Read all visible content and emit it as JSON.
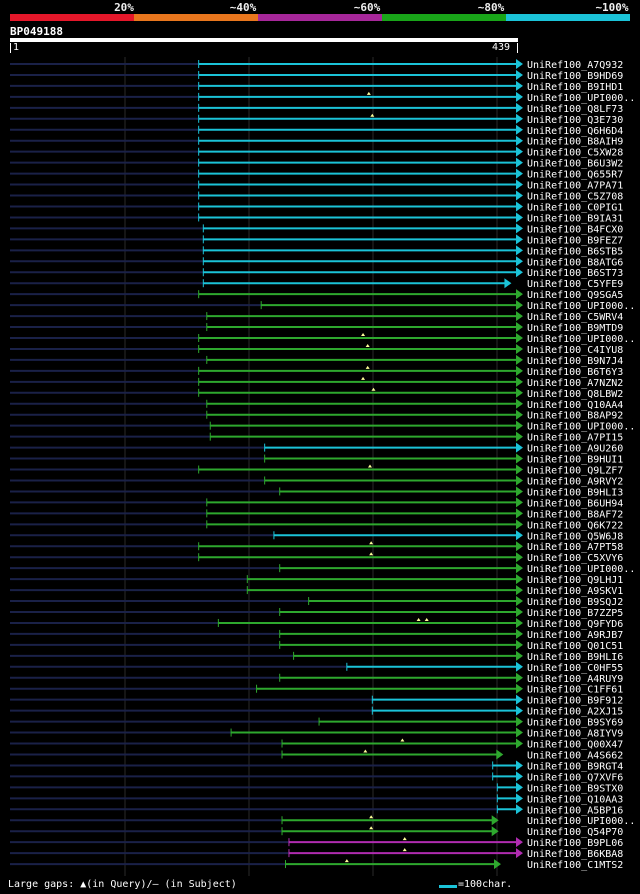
{
  "scale": {
    "labels": [
      "20%",
      "~40%",
      "~60%",
      "~80%",
      "~100%"
    ],
    "colors": [
      "#e5172a",
      "#e8761d",
      "#a7279a",
      "#19a519",
      "#1bc3d8"
    ]
  },
  "query": {
    "name": "BP049188",
    "start": "1",
    "end": "439",
    "length": 439
  },
  "colors": {
    "cyan": "#1bc3d8",
    "green": "#2ea82e",
    "magenta": "#b02cb0",
    "dim": "#1a2148",
    "gap": "#ffff99"
  },
  "footer": {
    "gaps_text": "Large gaps: ▲(in Query)/— (in Subject)",
    "legend_text": "=100char."
  },
  "chart_data": {
    "type": "alignment",
    "query_length": 439,
    "hits": [
      {
        "name": "UniRef100_A7Q932",
        "start": 164,
        "end": 439,
        "color": "cyan",
        "gaps": []
      },
      {
        "name": "UniRef100_B9HD69",
        "start": 164,
        "end": 439,
        "color": "cyan",
        "gaps": []
      },
      {
        "name": "UniRef100_B9IHD1",
        "start": 164,
        "end": 439,
        "color": "cyan",
        "gaps": []
      },
      {
        "name": "UniRef100_UPI000..",
        "start": 164,
        "end": 439,
        "color": "cyan",
        "gaps": [
          311
        ]
      },
      {
        "name": "UniRef100_Q8LF73",
        "start": 164,
        "end": 439,
        "color": "cyan",
        "gaps": []
      },
      {
        "name": "UniRef100_Q3E730",
        "start": 164,
        "end": 439,
        "color": "cyan",
        "gaps": [
          314
        ]
      },
      {
        "name": "UniRef100_Q6H6D4",
        "start": 164,
        "end": 439,
        "color": "cyan",
        "gaps": []
      },
      {
        "name": "UniRef100_B8AIH9",
        "start": 164,
        "end": 439,
        "color": "cyan",
        "gaps": []
      },
      {
        "name": "UniRef100_C5XW28",
        "start": 164,
        "end": 439,
        "color": "cyan",
        "gaps": []
      },
      {
        "name": "UniRef100_B6U3W2",
        "start": 164,
        "end": 439,
        "color": "cyan",
        "gaps": []
      },
      {
        "name": "UniRef100_Q655R7",
        "start": 164,
        "end": 439,
        "color": "cyan",
        "gaps": []
      },
      {
        "name": "UniRef100_A7PA71",
        "start": 164,
        "end": 439,
        "color": "cyan",
        "gaps": []
      },
      {
        "name": "UniRef100_C5Z708",
        "start": 164,
        "end": 439,
        "color": "cyan",
        "gaps": []
      },
      {
        "name": "UniRef100_C0PIG1",
        "start": 164,
        "end": 439,
        "color": "cyan",
        "gaps": []
      },
      {
        "name": "UniRef100_B9IA31",
        "start": 164,
        "end": 439,
        "color": "cyan",
        "gaps": []
      },
      {
        "name": "UniRef100_B4FCX0",
        "start": 168,
        "end": 439,
        "color": "cyan",
        "gaps": []
      },
      {
        "name": "UniRef100_B9FEZ7",
        "start": 168,
        "end": 439,
        "color": "cyan",
        "gaps": []
      },
      {
        "name": "UniRef100_B6STB5",
        "start": 168,
        "end": 439,
        "color": "cyan",
        "gaps": []
      },
      {
        "name": "UniRef100_B8ATG6",
        "start": 168,
        "end": 439,
        "color": "cyan",
        "gaps": []
      },
      {
        "name": "UniRef100_B6ST73",
        "start": 168,
        "end": 439,
        "color": "cyan",
        "gaps": []
      },
      {
        "name": "UniRef100_C5YFE9",
        "start": 168,
        "end": 429,
        "color": "cyan",
        "gaps": []
      },
      {
        "name": "UniRef100_Q9SGA5",
        "start": 164,
        "end": 439,
        "color": "green",
        "gaps": []
      },
      {
        "name": "UniRef100_UPI000..",
        "start": 218,
        "end": 439,
        "color": "green",
        "gaps": []
      },
      {
        "name": "UniRef100_C5WRV4",
        "start": 171,
        "end": 439,
        "color": "green",
        "gaps": []
      },
      {
        "name": "UniRef100_B9MTD9",
        "start": 171,
        "end": 439,
        "color": "green",
        "gaps": []
      },
      {
        "name": "UniRef100_UPI000..",
        "start": 164,
        "end": 439,
        "color": "green",
        "gaps": [
          306
        ]
      },
      {
        "name": "UniRef100_C4IYU8",
        "start": 164,
        "end": 439,
        "color": "green",
        "gaps": [
          310
        ]
      },
      {
        "name": "UniRef100_B9N7J4",
        "start": 171,
        "end": 439,
        "color": "green",
        "gaps": []
      },
      {
        "name": "UniRef100_B6T6Y3",
        "start": 164,
        "end": 439,
        "color": "green",
        "gaps": [
          310
        ]
      },
      {
        "name": "UniRef100_A7NZN2",
        "start": 164,
        "end": 439,
        "color": "green",
        "gaps": [
          306
        ]
      },
      {
        "name": "UniRef100_Q8LBW2",
        "start": 164,
        "end": 439,
        "color": "green",
        "gaps": [
          315
        ]
      },
      {
        "name": "UniRef100_Q10AA4",
        "start": 171,
        "end": 439,
        "color": "green",
        "gaps": []
      },
      {
        "name": "UniRef100_B8AP92",
        "start": 171,
        "end": 439,
        "color": "green",
        "gaps": []
      },
      {
        "name": "UniRef100_UPI000..",
        "start": 174,
        "end": 439,
        "color": "green",
        "gaps": []
      },
      {
        "name": "UniRef100_A7PI15",
        "start": 174,
        "end": 439,
        "color": "green",
        "gaps": []
      },
      {
        "name": "UniRef100_A9U260",
        "start": 221,
        "end": 439,
        "color": "cyan",
        "gaps": []
      },
      {
        "name": "UniRef100_B9HUI1",
        "start": 221,
        "end": 439,
        "color": "green",
        "gaps": []
      },
      {
        "name": "UniRef100_Q9LZF7",
        "start": 164,
        "end": 439,
        "color": "green",
        "gaps": [
          312
        ]
      },
      {
        "name": "UniRef100_A9RVY2",
        "start": 221,
        "end": 439,
        "color": "green",
        "gaps": []
      },
      {
        "name": "UniRef100_B9HLI3",
        "start": 234,
        "end": 439,
        "color": "green",
        "gaps": []
      },
      {
        "name": "UniRef100_B6UH94",
        "start": 171,
        "end": 439,
        "color": "green",
        "gaps": []
      },
      {
        "name": "UniRef100_B8AF72",
        "start": 171,
        "end": 439,
        "color": "green",
        "gaps": []
      },
      {
        "name": "UniRef100_Q6K722",
        "start": 171,
        "end": 439,
        "color": "green",
        "gaps": []
      },
      {
        "name": "UniRef100_Q5W6J8",
        "start": 229,
        "end": 439,
        "color": "cyan",
        "gaps": []
      },
      {
        "name": "UniRef100_A7PT58",
        "start": 164,
        "end": 439,
        "color": "green",
        "gaps": [
          313
        ]
      },
      {
        "name": "UniRef100_C5XVY6",
        "start": 164,
        "end": 439,
        "color": "green",
        "gaps": [
          313
        ]
      },
      {
        "name": "UniRef100_UPI000..",
        "start": 234,
        "end": 439,
        "color": "green",
        "gaps": []
      },
      {
        "name": "UniRef100_Q9LHJ1",
        "start": 206,
        "end": 439,
        "color": "green",
        "gaps": []
      },
      {
        "name": "UniRef100_A9SKV1",
        "start": 206,
        "end": 439,
        "color": "green",
        "gaps": []
      },
      {
        "name": "UniRef100_B9SQJ2",
        "start": 259,
        "end": 439,
        "color": "green",
        "gaps": []
      },
      {
        "name": "UniRef100_B7ZZP5",
        "start": 234,
        "end": 439,
        "color": "green",
        "gaps": []
      },
      {
        "name": "UniRef100_Q9FYD6",
        "start": 181,
        "end": 439,
        "color": "green",
        "gaps": [
          354,
          361
        ]
      },
      {
        "name": "UniRef100_A9RJB7",
        "start": 234,
        "end": 439,
        "color": "green",
        "gaps": []
      },
      {
        "name": "UniRef100_Q01C51",
        "start": 234,
        "end": 439,
        "color": "green",
        "gaps": []
      },
      {
        "name": "UniRef100_B9HLI6",
        "start": 246,
        "end": 439,
        "color": "green",
        "gaps": []
      },
      {
        "name": "UniRef100_C0HF55",
        "start": 292,
        "end": 439,
        "color": "cyan",
        "gaps": []
      },
      {
        "name": "UniRef100_A4RUY9",
        "start": 234,
        "end": 439,
        "color": "green",
        "gaps": []
      },
      {
        "name": "UniRef100_C1FF61",
        "start": 214,
        "end": 439,
        "color": "green",
        "gaps": []
      },
      {
        "name": "UniRef100_B9F912",
        "start": 314,
        "end": 439,
        "color": "cyan",
        "gaps": []
      },
      {
        "name": "UniRef100_A2XJ15",
        "start": 314,
        "end": 439,
        "color": "cyan",
        "gaps": []
      },
      {
        "name": "UniRef100_B9SY69",
        "start": 268,
        "end": 439,
        "color": "green",
        "gaps": []
      },
      {
        "name": "UniRef100_A8IYV9",
        "start": 192,
        "end": 439,
        "color": "green",
        "gaps": []
      },
      {
        "name": "UniRef100_Q00X47",
        "start": 236,
        "end": 439,
        "color": "green",
        "gaps": [
          340
        ]
      },
      {
        "name": "UniRef100_A4S662",
        "start": 236,
        "end": 422,
        "color": "green",
        "gaps": [
          308
        ]
      },
      {
        "name": "UniRef100_B9RGT4",
        "start": 418,
        "end": 439,
        "color": "cyan",
        "gaps": []
      },
      {
        "name": "UniRef100_Q7XVF6",
        "start": 418,
        "end": 439,
        "color": "cyan",
        "gaps": []
      },
      {
        "name": "UniRef100_B9STX0",
        "start": 422,
        "end": 439,
        "color": "cyan",
        "gaps": []
      },
      {
        "name": "UniRef100_Q10AA3",
        "start": 422,
        "end": 439,
        "color": "cyan",
        "gaps": []
      },
      {
        "name": "UniRef100_A5BP16",
        "start": 422,
        "end": 439,
        "color": "cyan",
        "gaps": []
      },
      {
        "name": "UniRef100_UPI000..",
        "start": 236,
        "end": 418,
        "color": "green",
        "gaps": [
          313
        ]
      },
      {
        "name": "UniRef100_Q54P70",
        "start": 236,
        "end": 418,
        "color": "green",
        "gaps": [
          313
        ]
      },
      {
        "name": "UniRef100_B9PL06",
        "start": 242,
        "end": 439,
        "color": "magenta",
        "gaps": [
          342
        ]
      },
      {
        "name": "UniRef100_B6KBA8",
        "start": 242,
        "end": 439,
        "color": "magenta",
        "gaps": [
          342
        ]
      },
      {
        "name": "UniRef100_C1MTS2",
        "start": 239,
        "end": 420,
        "color": "green",
        "gaps": [
          292
        ]
      }
    ]
  }
}
